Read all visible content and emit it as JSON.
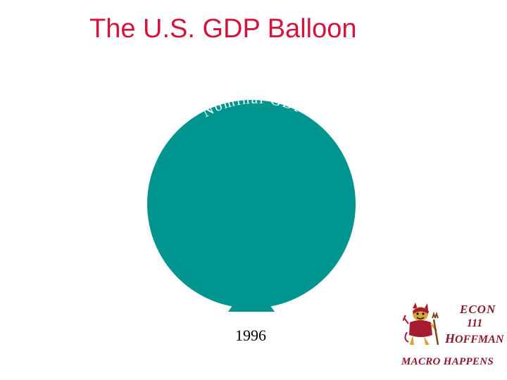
{
  "slide": {
    "title": "The U.S. GDP Balloon"
  },
  "balloon": {
    "label": "Nominal GDP",
    "year": "1996",
    "color": "#00958f"
  },
  "badge": {
    "line1": "ECON",
    "line2": "111",
    "name_initial": "H",
    "name_rest": "OFFMAN",
    "tagline": "MACRO HAPPENS",
    "text_color": "#8b1a2b"
  }
}
